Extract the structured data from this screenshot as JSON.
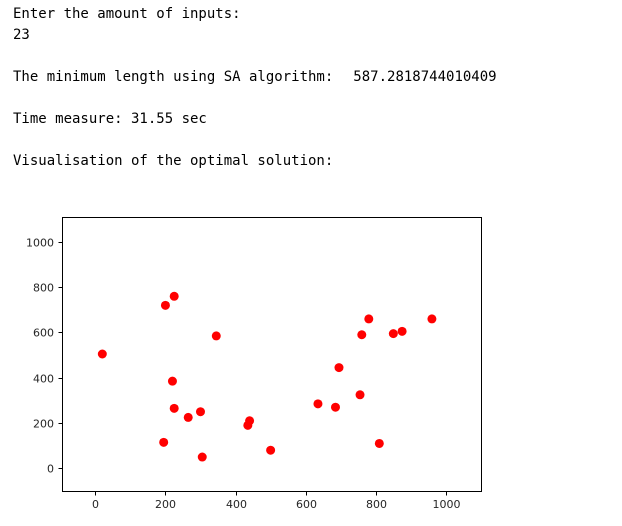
{
  "output": {
    "prompt": "Enter the amount of inputs:",
    "input_value": "23",
    "result_label": "The minimum length using SA algorithm:",
    "result_value": "587.2818744010409",
    "time_text": "Time measure: 31.55 sec",
    "visual_text": "Visualisation of the optimal solution:"
  },
  "chart_data": {
    "type": "scatter",
    "title": "",
    "xlabel": "",
    "ylabel": "",
    "xlim": [
      -95,
      1100
    ],
    "ylim": [
      -100,
      1110
    ],
    "xticks": [
      0,
      200,
      400,
      600,
      800,
      1000
    ],
    "yticks": [
      0,
      200,
      400,
      600,
      800,
      1000
    ],
    "grid": false,
    "point_color": "#ff0000",
    "points": [
      {
        "x": 20,
        "y": 505
      },
      {
        "x": 200,
        "y": 720
      },
      {
        "x": 225,
        "y": 760
      },
      {
        "x": 345,
        "y": 585
      },
      {
        "x": 220,
        "y": 385
      },
      {
        "x": 225,
        "y": 265
      },
      {
        "x": 265,
        "y": 225
      },
      {
        "x": 300,
        "y": 250
      },
      {
        "x": 195,
        "y": 115
      },
      {
        "x": 305,
        "y": 50
      },
      {
        "x": 435,
        "y": 190
      },
      {
        "x": 440,
        "y": 210
      },
      {
        "x": 500,
        "y": 80
      },
      {
        "x": 635,
        "y": 285
      },
      {
        "x": 685,
        "y": 270
      },
      {
        "x": 695,
        "y": 445
      },
      {
        "x": 755,
        "y": 325
      },
      {
        "x": 760,
        "y": 590
      },
      {
        "x": 780,
        "y": 660
      },
      {
        "x": 810,
        "y": 110
      },
      {
        "x": 850,
        "y": 595
      },
      {
        "x": 875,
        "y": 605
      },
      {
        "x": 960,
        "y": 660
      }
    ]
  }
}
